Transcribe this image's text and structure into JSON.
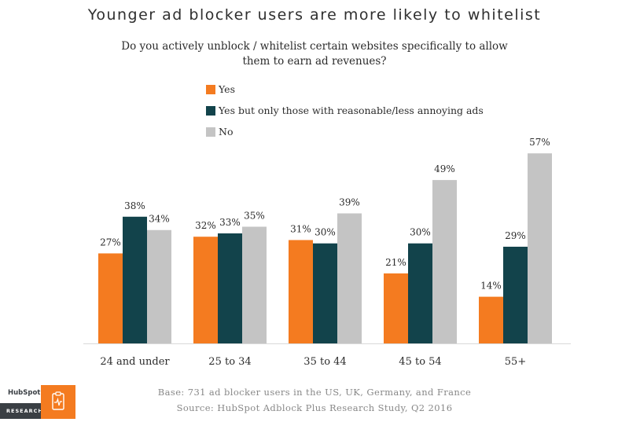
{
  "chart_data": {
    "type": "bar",
    "title": "Younger ad blocker users are more likely to whitelist",
    "subtitle_lines": [
      "Do you actively unblock / whitelist certain websites specifically to allow",
      "them to earn ad revenues?"
    ],
    "categories": [
      "24 and under",
      "25 to 34",
      "35 to 44",
      "45 to 54",
      "55+"
    ],
    "series": [
      {
        "name": "Yes",
        "color": "#f47b20",
        "values": [
          27,
          32,
          31,
          21,
          14
        ]
      },
      {
        "name": "Yes but only those with reasonable/less annoying ads",
        "color": "#12434b",
        "values": [
          38,
          33,
          30,
          30,
          29
        ]
      },
      {
        "name": "No",
        "color": "#c4c4c4",
        "values": [
          34,
          35,
          39,
          49,
          57
        ]
      }
    ],
    "value_suffix": "%",
    "ylim": [
      0,
      70
    ],
    "grid": false,
    "legend_position": "top"
  },
  "footer": {
    "base": "Base: 731 ad blocker users in the US, UK, Germany, and France",
    "source": "Source: HubSpot Adblock Plus Research Study, Q2 2016"
  },
  "logo": {
    "brand": "HubSpot",
    "label": "RESEARCH",
    "icon": "clipboard-pulse-icon"
  }
}
